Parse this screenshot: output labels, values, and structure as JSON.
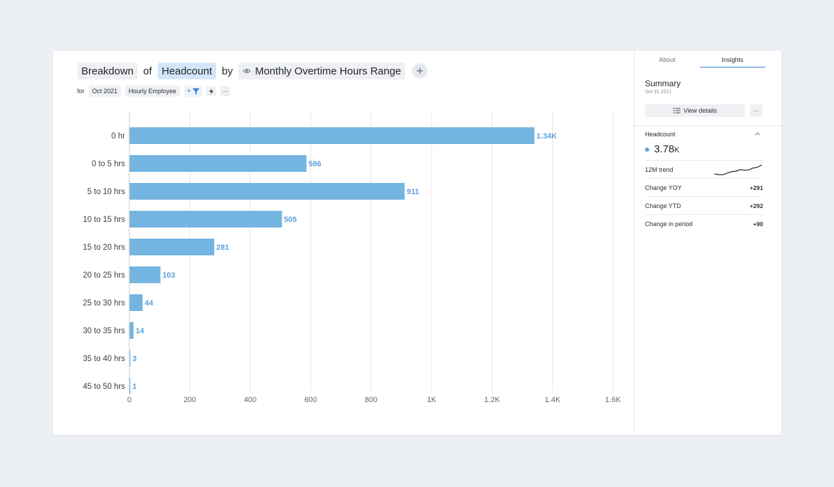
{
  "header": {
    "breakdown": "Breakdown",
    "of": "of",
    "metric": "Headcount",
    "by": "by",
    "dimension": "Monthly Overtime Hours Range",
    "add": "+"
  },
  "filters": {
    "for": "for",
    "period": "Oct 2021",
    "group": "Hourly Employee",
    "add_filter": "+",
    "more": "···"
  },
  "chart_data": {
    "type": "bar",
    "orientation": "horizontal",
    "categories": [
      "0 hr",
      "0 to 5 hrs",
      "5 to 10 hrs",
      "10 to 15 hrs",
      "15 to 20 hrs",
      "20 to 25 hrs",
      "25 to 30 hrs",
      "30 to 35 hrs",
      "35 to 40 hrs",
      "45 to 50 hrs"
    ],
    "values": [
      1340,
      586,
      911,
      505,
      281,
      103,
      44,
      14,
      3,
      1
    ],
    "labels": [
      "1.34K",
      "586",
      "911",
      "505",
      "281",
      "103",
      "44",
      "14",
      "3",
      "1"
    ],
    "xlim": [
      0,
      1600
    ],
    "xticks": [
      0,
      200,
      400,
      600,
      800,
      1000,
      1200,
      1400,
      1600
    ],
    "xtick_labels": [
      "0",
      "200",
      "400",
      "600",
      "800",
      "1K",
      "1.2K",
      "1.4K",
      "1.6K"
    ],
    "grid": true,
    "bar_color": "#74b4e0",
    "label_color": "#5aa0dc"
  },
  "panel": {
    "tabs": [
      "About",
      "Insights"
    ],
    "active_tab": "Insights",
    "summary_title": "Summary",
    "summary_date": "Oct 31 2021",
    "view_details": "View details",
    "more": "···",
    "headcount_label": "Headcount",
    "headcount_value": "3.78",
    "headcount_unit": "K",
    "trend_label": "12M trend",
    "trend": [
      3.49,
      3.47,
      3.47,
      3.52,
      3.56,
      3.58,
      3.63,
      3.61,
      3.62,
      3.68,
      3.7,
      3.78
    ],
    "metrics": [
      {
        "label": "Change YOY",
        "value": "+291"
      },
      {
        "label": "Change YTD",
        "value": "+292"
      },
      {
        "label": "Change in period",
        "value": "+90"
      }
    ]
  }
}
